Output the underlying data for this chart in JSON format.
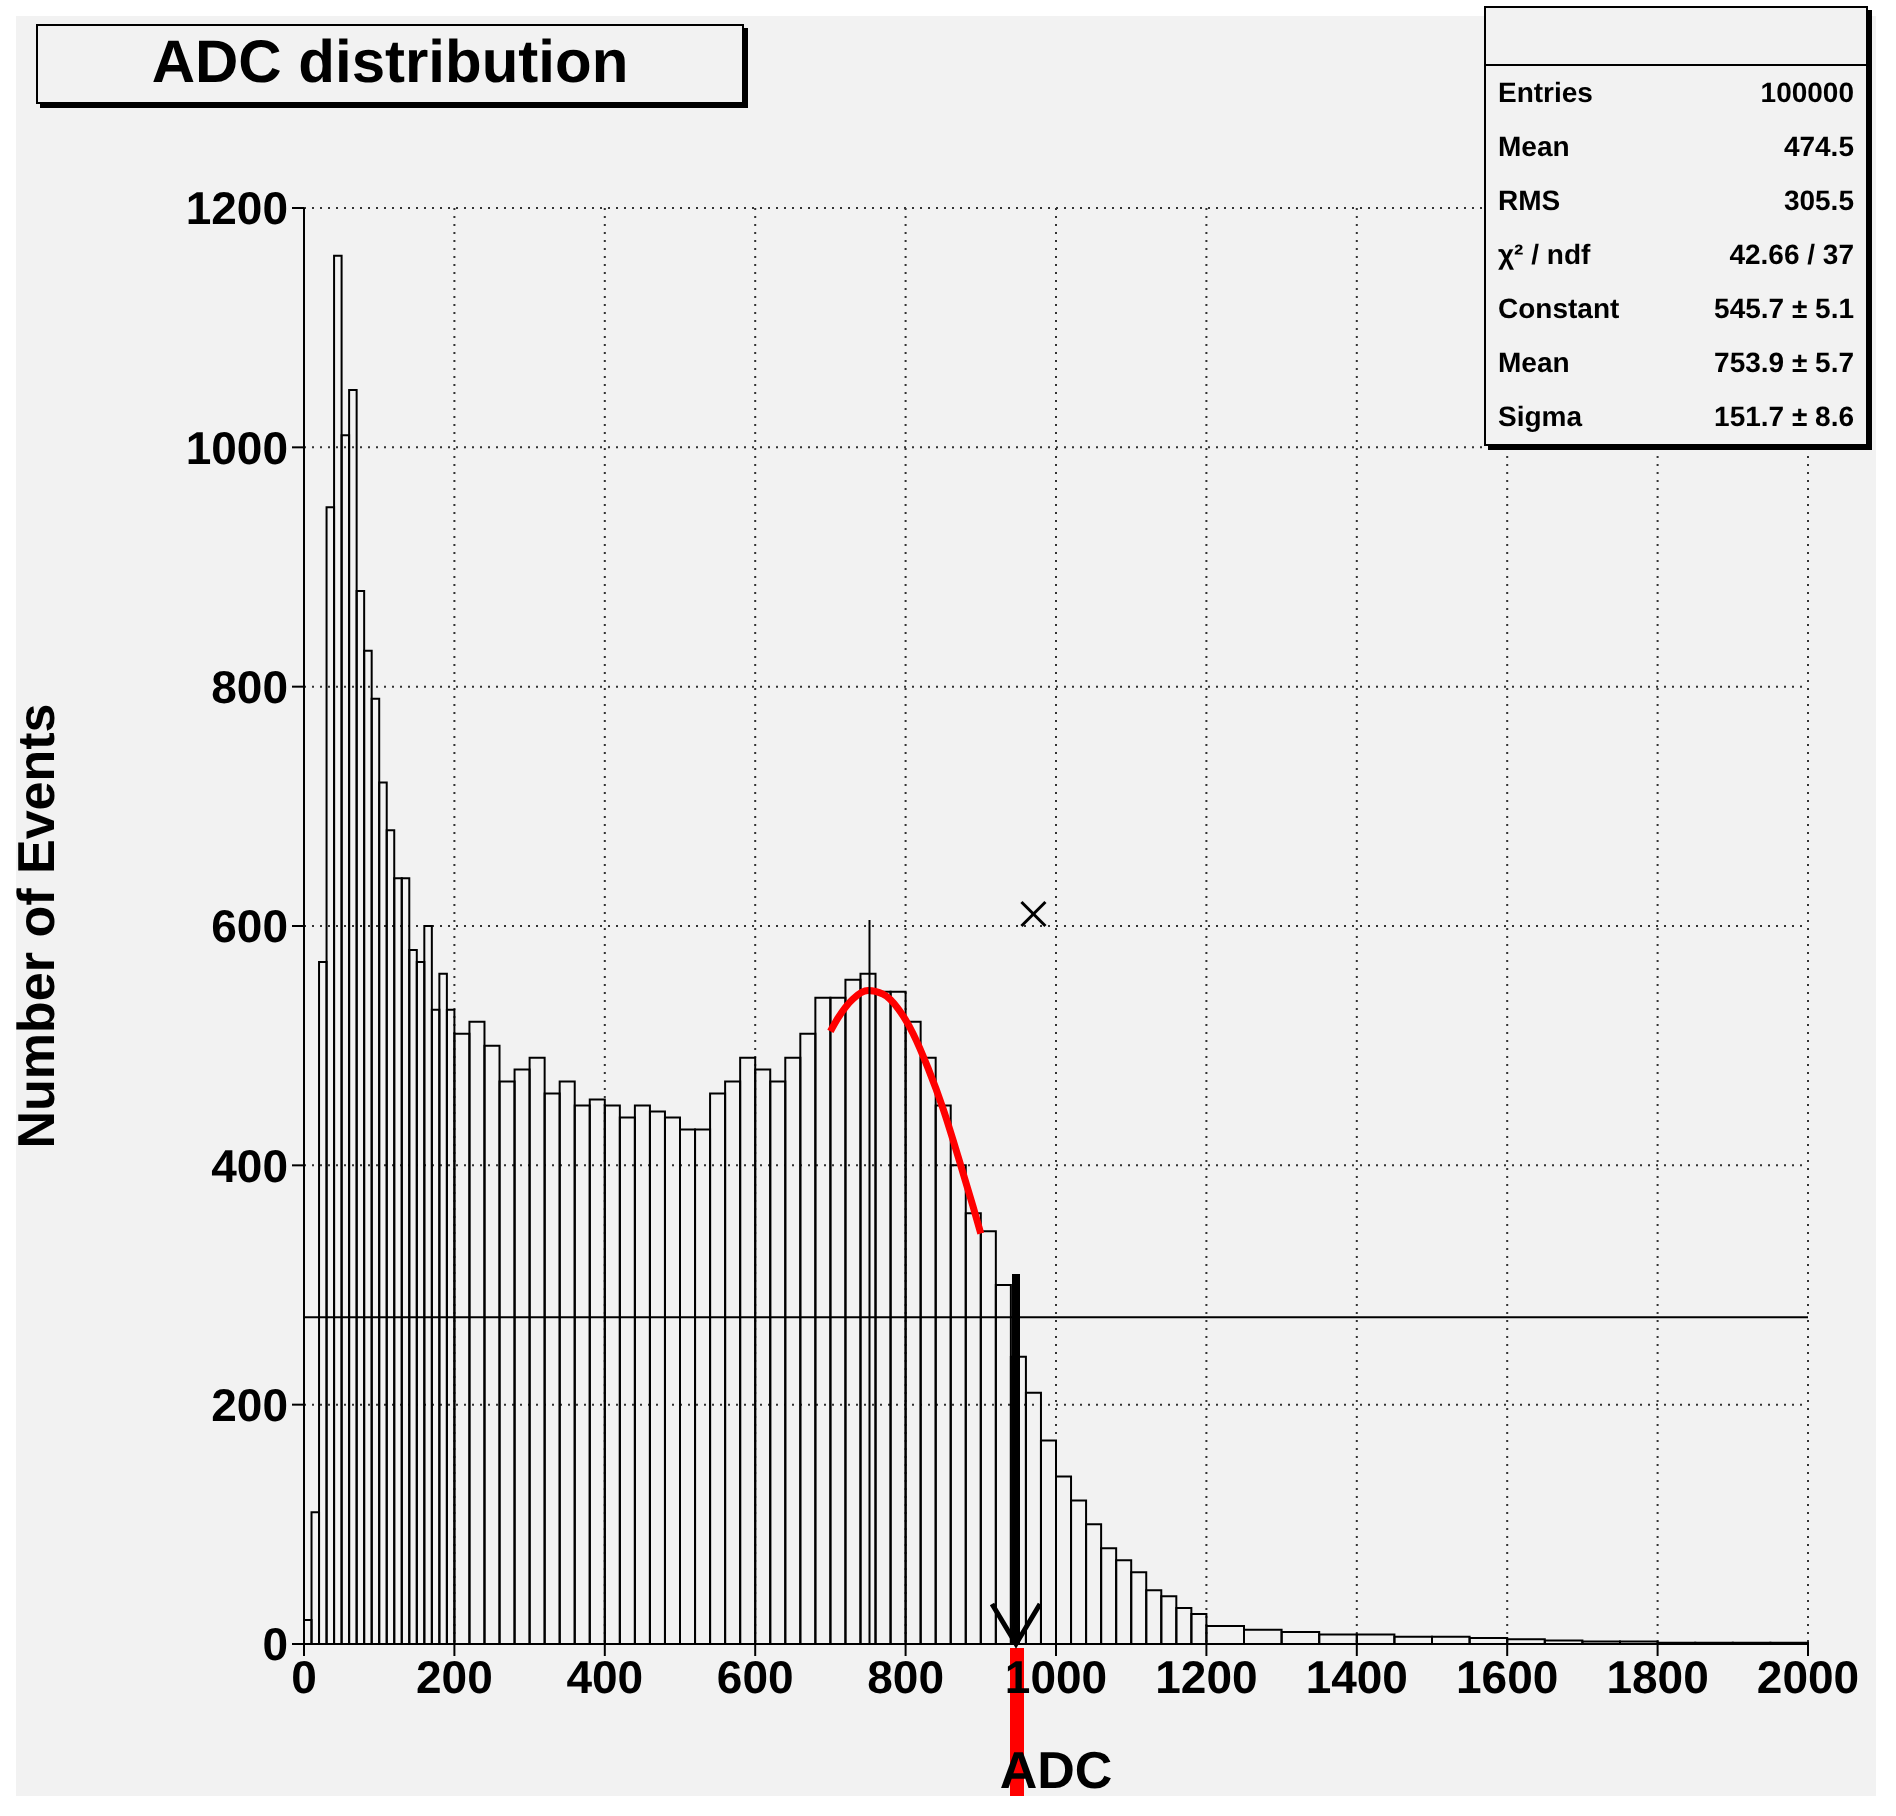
{
  "chart_data": {
    "type": "histogram",
    "title": "ADC distribution",
    "xlabel": "ADC",
    "ylabel": "Number of Events",
    "bins": [
      0,
      10,
      20,
      30,
      40,
      50,
      60,
      70,
      80,
      90,
      100,
      110,
      120,
      130,
      140,
      150,
      160,
      170,
      180,
      190,
      200,
      220,
      240,
      260,
      280,
      300,
      320,
      340,
      360,
      380,
      400,
      420,
      440,
      460,
      480,
      500,
      520,
      540,
      560,
      580,
      600,
      620,
      640,
      660,
      680,
      700,
      720,
      740,
      760,
      780,
      800,
      820,
      840,
      860,
      880,
      900,
      920,
      940,
      960,
      980,
      1000,
      1020,
      1040,
      1060,
      1080,
      1100,
      1120,
      1140,
      1160,
      1180,
      1200,
      1250,
      1300,
      1350,
      1400,
      1450,
      1500,
      1550,
      1600,
      1650,
      1700,
      1750,
      1800,
      1850,
      1900,
      1950,
      2000
    ],
    "values": [
      20,
      110,
      570,
      950,
      1160,
      1010,
      1048,
      880,
      830,
      790,
      720,
      680,
      640,
      640,
      580,
      570,
      600,
      530,
      560,
      530,
      510,
      520,
      500,
      470,
      480,
      490,
      460,
      470,
      450,
      455,
      450,
      440,
      450,
      445,
      440,
      430,
      430,
      460,
      470,
      490,
      480,
      470,
      490,
      510,
      540,
      540,
      555,
      560,
      545,
      545,
      520,
      490,
      450,
      400,
      360,
      345,
      300,
      240,
      210,
      170,
      140,
      120,
      100,
      80,
      70,
      60,
      45,
      40,
      30,
      25,
      15,
      12,
      10,
      8,
      8,
      6,
      6,
      5,
      4,
      3,
      2,
      2,
      1,
      1,
      1,
      1
    ],
    "color": "#000000",
    "series": [
      {
        "type": "line",
        "color": "#ff0000",
        "x": [
          700,
          710,
          730,
          750,
          770,
          790,
          810,
          830,
          850,
          870,
          890,
          900
        ],
        "values": [
          512,
          523,
          539,
          546,
          543,
          531,
          510,
          481,
          447,
          407,
          365,
          343
        ]
      },
      {
        "type": "line",
        "color": "#000000",
        "x": [
          752,
          752
        ],
        "values": [
          0,
          605
        ]
      },
      {
        "type": "scatter",
        "marker": "cross",
        "color": "#000000",
        "x": [
          970
        ],
        "values": [
          610
        ]
      }
    ],
    "ref_lines": [
      {
        "axis": "y",
        "value": 273,
        "color": "#000000"
      }
    ],
    "xlim": [
      0,
      2000
    ],
    "xticks": [
      0,
      200,
      400,
      600,
      800,
      1000,
      1200,
      1400,
      1600,
      1800,
      2000
    ],
    "ylim": [
      0,
      1200
    ],
    "yticks": [
      0,
      200,
      400,
      600,
      800,
      1000,
      1200
    ],
    "grid": true,
    "annotations": [
      "Entries",
      "100000",
      "Mean",
      "474.5",
      "RMS",
      "305.5",
      "χ² / ndf",
      "42.66 / 37",
      "Constant",
      "545.7 ± 5.1",
      "Mean",
      "753.9 ± 5.7",
      "Sigma",
      "151.7 ± 8.6"
    ]
  }
}
